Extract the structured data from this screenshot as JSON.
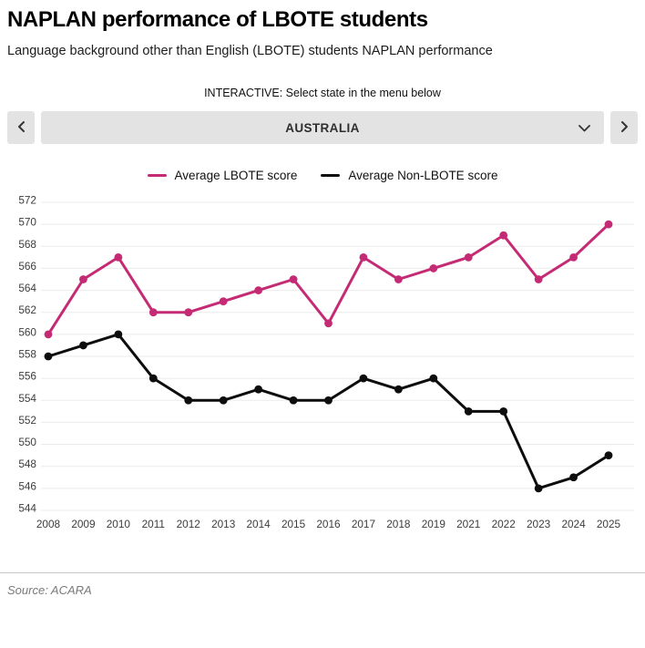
{
  "header": {
    "title": "NAPLAN performance of LBOTE students",
    "subtitle": "Language background other than English (LBOTE) students NAPLAN performance"
  },
  "selector": {
    "instruction": "INTERACTIVE: Select state in the menu below",
    "value": "AUSTRALIA",
    "prev_icon": "chevron-left",
    "next_icon": "chevron-right",
    "dropdown_icon": "chevron-down"
  },
  "legend": [
    {
      "label": "Average LBOTE score",
      "color": "#c52a74"
    },
    {
      "label": "Average Non-LBOTE score",
      "color": "#0d0d0d"
    }
  ],
  "chart_data": {
    "type": "line",
    "categories": [
      "2008",
      "2009",
      "2010",
      "2011",
      "2012",
      "2013",
      "2014",
      "2015",
      "2016",
      "2017",
      "2018",
      "2019",
      "2021",
      "2022",
      "2023",
      "2024",
      "2025"
    ],
    "series": [
      {
        "name": "Average LBOTE score",
        "color": "#c52a74",
        "values": [
          560,
          565,
          567,
          562,
          562,
          563,
          564,
          565,
          561,
          567,
          565,
          566,
          567,
          569,
          565,
          567,
          570
        ]
      },
      {
        "name": "Average Non-LBOTE score",
        "color": "#0d0d0d",
        "values": [
          558,
          559,
          560,
          556,
          554,
          554,
          555,
          554,
          554,
          556,
          555,
          556,
          553,
          553,
          546,
          547,
          549
        ]
      }
    ],
    "title": "",
    "xlabel": "",
    "ylabel": "",
    "ylim": [
      544,
      572
    ],
    "ytick_step": 2,
    "grid": true,
    "legend_position": "top",
    "note_missing_year": "2020"
  },
  "footer": {
    "source": "Source: ACARA"
  },
  "colors": {
    "lbote": "#c52a74",
    "non_lbote": "#0d0d0d",
    "gridline": "#ebebeb",
    "control_bg": "#e3e3e3",
    "divider": "#c9c9c9"
  }
}
